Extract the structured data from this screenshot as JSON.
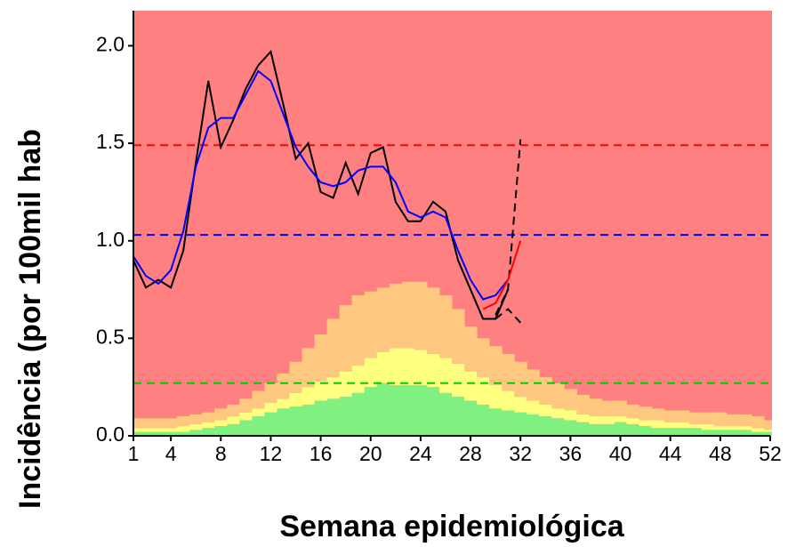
{
  "chart_data": {
    "type": "area",
    "x_label": "Semana epidemiológica",
    "y_label": "Incidência (por 100mil hab",
    "xlim": [
      1,
      52
    ],
    "ylim": [
      0,
      2.18
    ],
    "xticks": [
      1,
      4,
      8,
      12,
      16,
      20,
      24,
      28,
      32,
      36,
      40,
      44,
      48,
      52
    ],
    "yticks": [
      {
        "value": 0,
        "label": "0.0"
      },
      {
        "value": 0.5,
        "label": "0.5"
      },
      {
        "value": 1,
        "label": "1.0"
      },
      {
        "value": 1.5,
        "label": "1.5"
      },
      {
        "value": 2,
        "label": "2.0"
      }
    ],
    "background_color": "#ff8080",
    "grid": false,
    "bands": {
      "x": [
        1,
        2,
        3,
        4,
        5,
        6,
        7,
        8,
        9,
        10,
        11,
        12,
        13,
        14,
        15,
        16,
        17,
        18,
        19,
        20,
        21,
        22,
        23,
        24,
        25,
        26,
        27,
        28,
        29,
        30,
        31,
        32,
        33,
        34,
        35,
        36,
        37,
        38,
        39,
        40,
        41,
        42,
        43,
        44,
        45,
        46,
        47,
        48,
        49,
        50,
        51,
        52
      ],
      "series": [
        {
          "color": "#80f080",
          "values": [
            0.02,
            0.02,
            0.02,
            0.02,
            0.02,
            0.03,
            0.04,
            0.05,
            0.06,
            0.08,
            0.1,
            0.12,
            0.14,
            0.15,
            0.16,
            0.18,
            0.19,
            0.2,
            0.22,
            0.25,
            0.27,
            0.26,
            0.26,
            0.26,
            0.25,
            0.22,
            0.2,
            0.18,
            0.16,
            0.14,
            0.13,
            0.12,
            0.11,
            0.1,
            0.09,
            0.08,
            0.07,
            0.06,
            0.06,
            0.07,
            0.06,
            0.05,
            0.04,
            0.04,
            0.04,
            0.04,
            0.03,
            0.03,
            0.03,
            0.03,
            0.02,
            0.02
          ]
        },
        {
          "color": "#ffff80",
          "values": [
            0.02,
            0.02,
            0.02,
            0.02,
            0.03,
            0.03,
            0.03,
            0.03,
            0.04,
            0.04,
            0.04,
            0.05,
            0.05,
            0.07,
            0.09,
            0.1,
            0.11,
            0.13,
            0.14,
            0.15,
            0.16,
            0.19,
            0.19,
            0.18,
            0.17,
            0.18,
            0.17,
            0.15,
            0.14,
            0.12,
            0.1,
            0.08,
            0.07,
            0.06,
            0.05,
            0.05,
            0.04,
            0.04,
            0.04,
            0.03,
            0.03,
            0.03,
            0.04,
            0.03,
            0.03,
            0.02,
            0.03,
            0.02,
            0.02,
            0.02,
            0.02,
            0.01
          ]
        },
        {
          "color": "#ffc880",
          "values": [
            0.05,
            0.05,
            0.05,
            0.05,
            0.05,
            0.05,
            0.05,
            0.06,
            0.06,
            0.07,
            0.09,
            0.1,
            0.13,
            0.16,
            0.2,
            0.24,
            0.3,
            0.34,
            0.36,
            0.34,
            0.33,
            0.33,
            0.34,
            0.35,
            0.34,
            0.32,
            0.28,
            0.23,
            0.2,
            0.2,
            0.19,
            0.18,
            0.16,
            0.14,
            0.13,
            0.11,
            0.1,
            0.09,
            0.08,
            0.08,
            0.07,
            0.07,
            0.06,
            0.06,
            0.06,
            0.06,
            0.06,
            0.07,
            0.06,
            0.06,
            0.06,
            0.05
          ]
        }
      ]
    },
    "hlines": [
      {
        "value": 1.49,
        "color": "#ff0000"
      },
      {
        "value": 1.03,
        "color": "#0000ff"
      },
      {
        "value": 0.27,
        "color": "#00cc00"
      }
    ],
    "lines": [
      {
        "color": "#000000",
        "dashed": false,
        "x": [
          1,
          2,
          3,
          4,
          5,
          6,
          7,
          8,
          9,
          10,
          11,
          12,
          13,
          14,
          15,
          16,
          17,
          18,
          19,
          20,
          21,
          22,
          23,
          24,
          25,
          26,
          27,
          28,
          29,
          30,
          31
        ],
        "values": [
          0.9,
          0.76,
          0.8,
          0.76,
          0.95,
          1.4,
          1.82,
          1.48,
          1.62,
          1.78,
          1.9,
          1.97,
          1.7,
          1.42,
          1.5,
          1.25,
          1.22,
          1.4,
          1.24,
          1.45,
          1.48,
          1.2,
          1.1,
          1.1,
          1.2,
          1.15,
          0.9,
          0.75,
          0.6,
          0.6,
          0.75
        ]
      },
      {
        "color": "#000000",
        "dashed": true,
        "x": [
          30,
          31,
          32
        ],
        "values": [
          0.62,
          0.75,
          1.52
        ]
      },
      {
        "color": "#000000",
        "dashed": true,
        "x": [
          30,
          31,
          32
        ],
        "values": [
          0.6,
          0.65,
          0.58
        ]
      },
      {
        "color": "#0000ff",
        "dashed": false,
        "x": [
          1,
          2,
          3,
          4,
          5,
          6,
          7,
          8,
          9,
          10,
          11,
          12,
          13,
          14,
          15,
          16,
          17,
          18,
          19,
          20,
          21,
          22,
          23,
          24,
          25,
          26,
          27,
          28,
          29,
          30,
          31
        ],
        "values": [
          0.92,
          0.82,
          0.78,
          0.85,
          1.05,
          1.38,
          1.58,
          1.63,
          1.63,
          1.75,
          1.87,
          1.82,
          1.65,
          1.48,
          1.38,
          1.3,
          1.28,
          1.3,
          1.36,
          1.38,
          1.38,
          1.3,
          1.15,
          1.12,
          1.15,
          1.12,
          0.95,
          0.8,
          0.7,
          0.72,
          0.8
        ]
      },
      {
        "color": "#ff0000",
        "dashed": false,
        "x": [
          29,
          30,
          31,
          32
        ],
        "values": [
          0.65,
          0.68,
          0.8,
          1.0
        ]
      }
    ]
  }
}
